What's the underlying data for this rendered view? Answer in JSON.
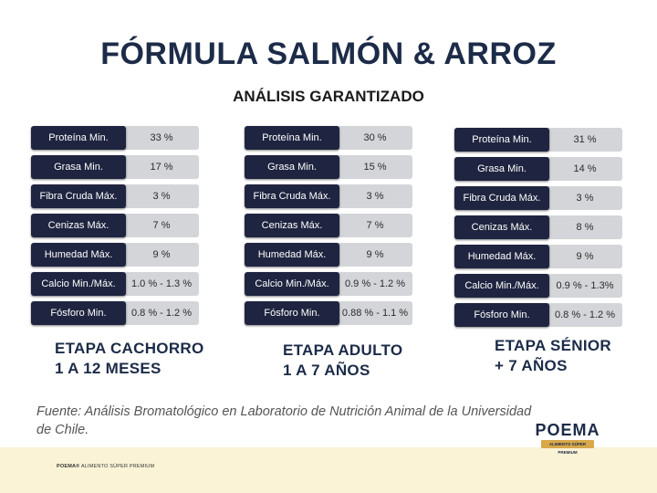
{
  "title": "FÓRMULA SALMÓN & ARROZ",
  "subtitle": "ANÁLISIS GARANTIZADO",
  "tables": [
    {
      "rows": [
        {
          "label": "Proteína Min.",
          "value": "33 %"
        },
        {
          "label": "Grasa Min.",
          "value": "17 %"
        },
        {
          "label": "Fibra Cruda Máx.",
          "value": "3 %"
        },
        {
          "label": "Cenizas Máx.",
          "value": "7 %"
        },
        {
          "label": "Humedad Máx.",
          "value": "9 %"
        },
        {
          "label": "Calcio Min./Máx.",
          "value": "1.0 % - 1.3 %"
        },
        {
          "label": "Fósforo Min.",
          "value": "0.8 % - 1.2 %"
        }
      ],
      "stage_line1": "ETAPA CACHORRO",
      "stage_line2": "1 A 12 MESES"
    },
    {
      "rows": [
        {
          "label": "Proteína Min.",
          "value": "30 %"
        },
        {
          "label": "Grasa Min.",
          "value": "15 %"
        },
        {
          "label": "Fibra Cruda Máx.",
          "value": "3 %"
        },
        {
          "label": "Cenizas Máx.",
          "value": "7 %"
        },
        {
          "label": "Humedad Máx.",
          "value": "9 %"
        },
        {
          "label": "Calcio Min./Máx.",
          "value": "0.9 % - 1.2 %"
        },
        {
          "label": "Fósforo Min.",
          "value": "0.88 % - 1.1 %"
        }
      ],
      "stage_line1": "ETAPA ADULTO",
      "stage_line2": "1 A 7 AÑOS"
    },
    {
      "rows": [
        {
          "label": "Proteína Min.",
          "value": "31 %"
        },
        {
          "label": "Grasa Min.",
          "value": "14 %"
        },
        {
          "label": "Fibra Cruda Máx.",
          "value": "3 %"
        },
        {
          "label": "Cenizas Máx.",
          "value": "8 %"
        },
        {
          "label": "Humedad Máx.",
          "value": "9 %"
        },
        {
          "label": "Calcio Min./Máx.",
          "value": "0.9 % - 1.3%"
        },
        {
          "label": "Fósforo Min.",
          "value": "0.8 % - 1.2 %"
        }
      ],
      "stage_line1": "ETAPA SÉNIOR",
      "stage_line2": "+ 7 AÑOS"
    }
  ],
  "source": "Fuente: Análisis Bromatológico en Laboratorio de Nutrición Animal de la Universidad de Chile.",
  "footer": {
    "brand": "POEMA®",
    "tagline": "ALIMENTO SÚPER PREMIUM"
  },
  "logo": {
    "word": "POEMA",
    "ribbon": "ALIMENTO SÚPER PREMIUM"
  },
  "colors": {
    "navy": "#1c2b48",
    "label_bg": "#1f2540",
    "value_bg": "#d3d5d8",
    "footer_band": "#fbf3d6",
    "logo_gold": "#d8a84a"
  }
}
